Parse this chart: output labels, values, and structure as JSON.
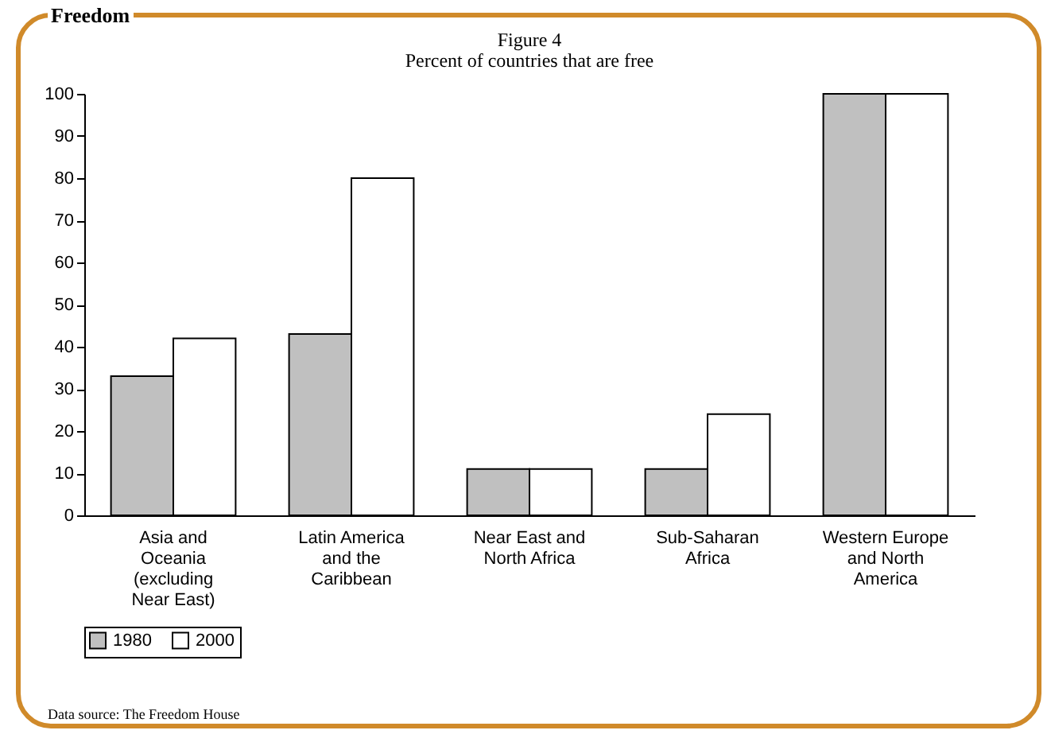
{
  "chart_data": {
    "type": "bar",
    "title": "Figure 4",
    "subtitle": "Percent of countries that are free",
    "categories": [
      "Asia and Oceania (excluding Near East)",
      "Latin America and the Caribbean",
      "Near East and North Africa",
      "Sub-Saharan Africa",
      "Western Europe and North America"
    ],
    "series": [
      {
        "name": "1980",
        "color": "#c0c0c0",
        "values": [
          33,
          43,
          11,
          11,
          100
        ]
      },
      {
        "name": "2000",
        "color": "#ffffff",
        "values": [
          42,
          80,
          11,
          24,
          100
        ]
      }
    ],
    "ylim": [
      0,
      100
    ],
    "yticks": [
      0,
      10,
      20,
      30,
      40,
      50,
      60,
      70,
      80,
      90,
      100
    ],
    "grid": false,
    "legend": "bottom",
    "annotations": [
      "Freedom",
      "Data source: The Freedom House"
    ]
  }
}
